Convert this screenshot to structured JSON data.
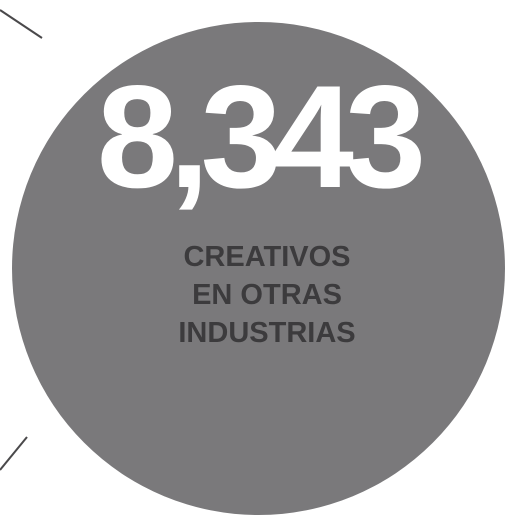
{
  "stat": {
    "value": "8,343",
    "label_lines": [
      "CREATIVOS",
      "EN OTRAS",
      "INDUSTRIAS"
    ]
  },
  "colors": {
    "circle": "#7a797b",
    "number": "#ffffff",
    "label": "#3c3b3d",
    "connector": "#4a494b",
    "background": "#ffffff"
  }
}
